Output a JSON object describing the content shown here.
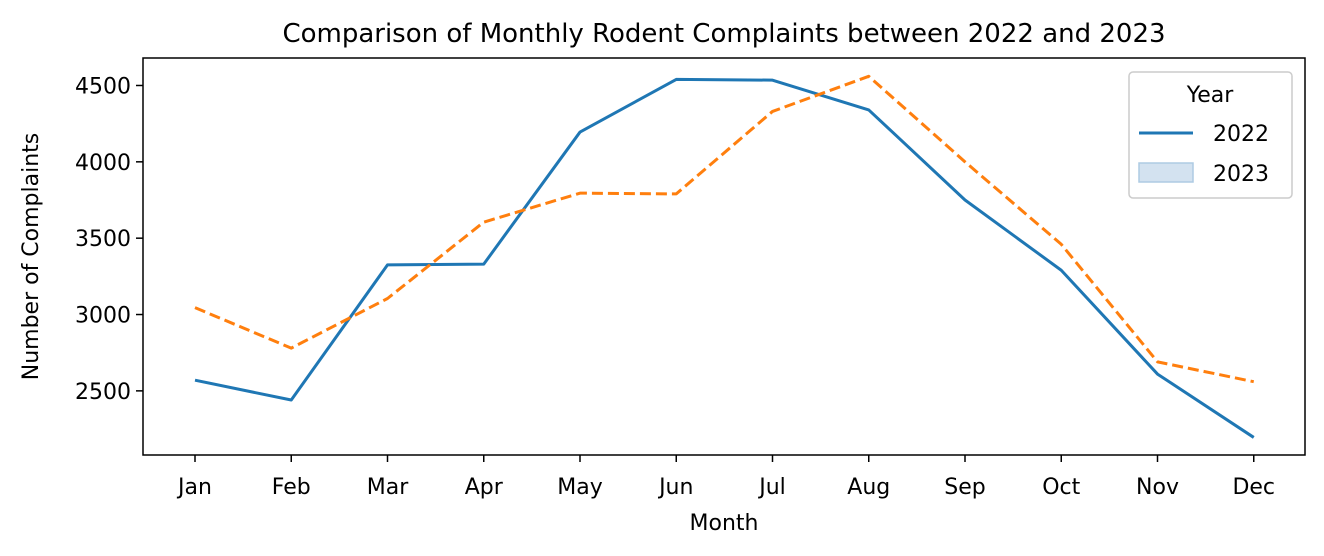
{
  "chart_data": {
    "type": "line",
    "title": "Comparison of Monthly Rodent Complaints between 2022 and 2023",
    "xlabel": "Month",
    "ylabel": "Number of Complaints",
    "categories": [
      "Jan",
      "Feb",
      "Mar",
      "Apr",
      "May",
      "Jun",
      "Jul",
      "Aug",
      "Sep",
      "Oct",
      "Nov",
      "Dec"
    ],
    "ylim": [
      2080,
      4680
    ],
    "yticks": [
      2500,
      3000,
      3500,
      4000,
      4500
    ],
    "grid": false,
    "legend": {
      "title": "Year",
      "placement": "top-right",
      "entries": [
        {
          "label": "2022",
          "marker": "line",
          "color": "#1f77b4"
        },
        {
          "label": "2023",
          "marker": "patch",
          "color": "#aecbe3"
        }
      ]
    },
    "series": [
      {
        "name": "2022",
        "color": "#1f77b4",
        "dash": "solid",
        "values": [
          2570,
          2440,
          3325,
          3330,
          4195,
          4540,
          4535,
          4340,
          3750,
          3290,
          2610,
          2195
        ]
      },
      {
        "name": "2023",
        "color": "#ff7f0e",
        "dash": "dashed",
        "values": [
          3045,
          2780,
          3105,
          3605,
          3795,
          3790,
          4330,
          4560,
          4000,
          3460,
          2690,
          2560
        ]
      }
    ]
  }
}
